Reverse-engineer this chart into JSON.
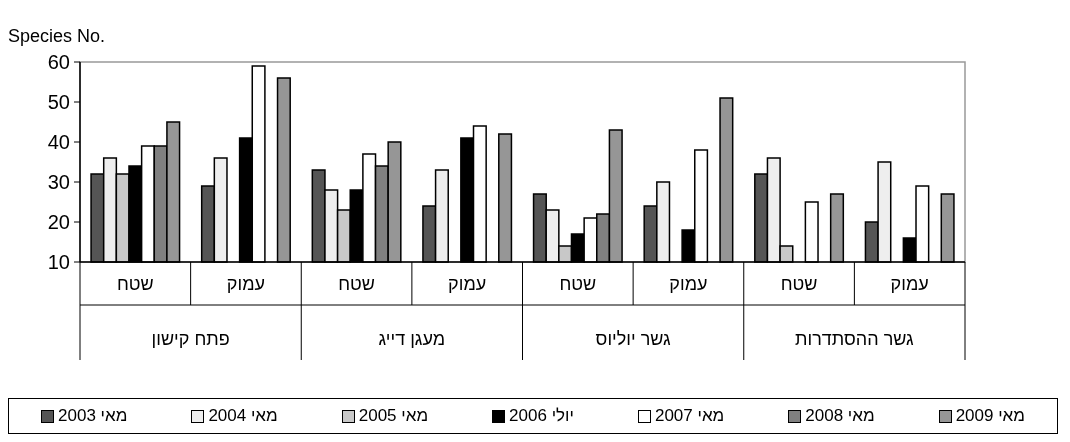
{
  "chart_data": {
    "type": "bar",
    "ylabel": "Species No.",
    "categories": [
      "שטח",
      "עמוק",
      "שטח",
      "עמוק",
      "שטח",
      "עמוק",
      "שטח",
      "עמוק"
    ],
    "annotations": [
      "פתח קישון",
      "מעגן דייג",
      "גשר יוליוס",
      "גשר ההסתדרות"
    ],
    "series": [
      {
        "name": "מאי 2003",
        "color": "#555555",
        "values": [
          32,
          29,
          33,
          24,
          27,
          24,
          32,
          20
        ]
      },
      {
        "name": "מאי 2004",
        "color": "#eeeeee",
        "values": [
          36,
          36,
          28,
          33,
          23,
          30,
          36,
          35
        ]
      },
      {
        "name": "מאי 2005",
        "color": "#c8c8c8",
        "values": [
          32,
          null,
          23,
          null,
          14,
          null,
          14,
          null
        ]
      },
      {
        "name": "יולי 2006",
        "color": "#000000",
        "values": [
          34,
          41,
          28,
          41,
          17,
          18,
          null,
          16
        ]
      },
      {
        "name": "מאי 2007",
        "color": "#ffffff",
        "values": [
          39,
          59,
          37,
          44,
          21,
          38,
          25,
          29
        ]
      },
      {
        "name": "מאי 2008",
        "color": "#808080",
        "values": [
          39,
          null,
          34,
          null,
          22,
          null,
          null,
          null
        ]
      },
      {
        "name": "מאי 2009",
        "color": "#969696",
        "values": [
          45,
          56,
          40,
          42,
          43,
          51,
          27,
          27
        ]
      }
    ],
    "ylim": [
      10,
      60
    ],
    "yticks": [
      10,
      20,
      30,
      40,
      50,
      60
    ],
    "legend": "bottom"
  }
}
